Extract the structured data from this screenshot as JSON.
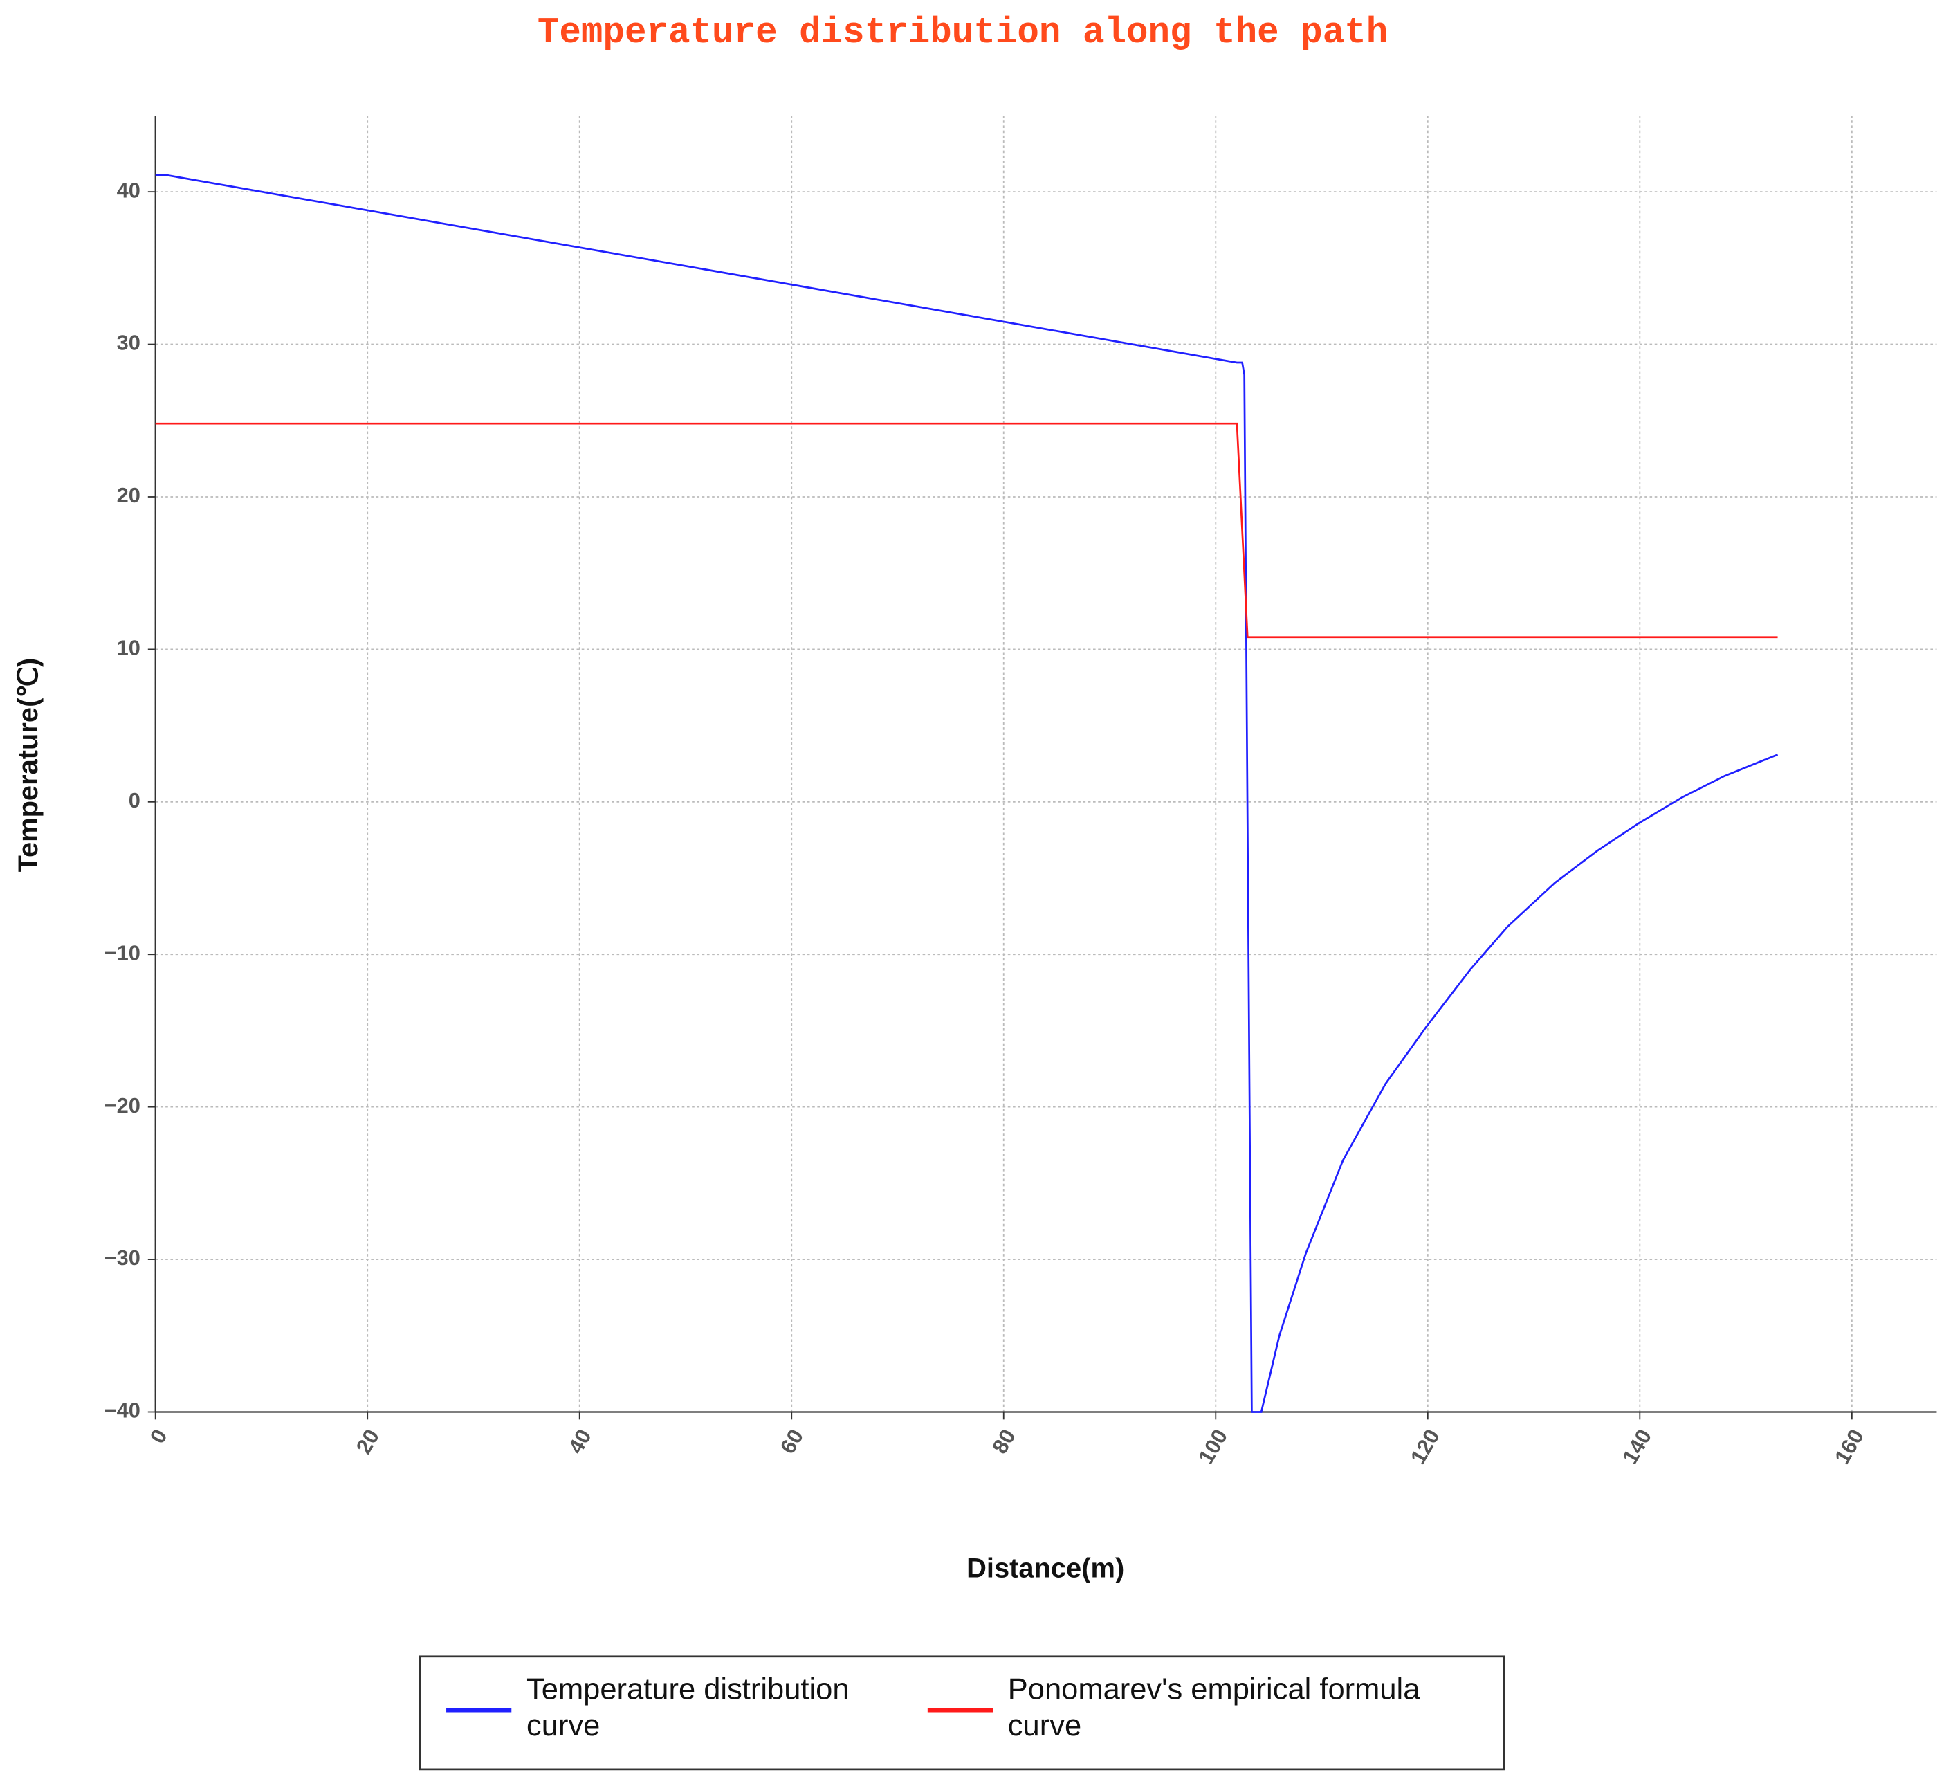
{
  "chart_data": {
    "type": "line",
    "title": "Temperature distribution along the path",
    "x_label": "Distance(m)",
    "y_label": "Temperature(℃)",
    "xlim": [
      0,
      168
    ],
    "ylim": [
      -40,
      45
    ],
    "xticks": [
      0,
      20,
      40,
      60,
      80,
      100,
      120,
      140,
      160
    ],
    "yticks": [
      {
        "value": -40,
        "label": "−40"
      },
      {
        "value": -30,
        "label": "−30"
      },
      {
        "value": -20,
        "label": "−20"
      },
      {
        "value": -10,
        "label": "−10"
      },
      0,
      10,
      20,
      30,
      40
    ],
    "grid": true,
    "legend": "bottom",
    "series": [
      {
        "name": "Temperature distribution curve",
        "color": "#2020ff",
        "x": [
          0,
          1,
          102,
          102.5,
          102.7,
          103.4,
          104.3,
          106,
          108.5,
          112,
          116,
          119.8,
          124,
          127.5,
          132,
          136,
          139.9,
          144,
          148,
          153
        ],
        "values": [
          41.1,
          41.1,
          28.8,
          28.8,
          28,
          -40,
          -40,
          -35,
          -29.6,
          -23.5,
          -18.5,
          -14.8,
          -11,
          -8.2,
          -5.3,
          -3.2,
          -1.4,
          0.3,
          1.7,
          3.1
        ]
      },
      {
        "name": "Ponomarev's empirical formula curve",
        "color": "#ff1a1a",
        "x": [
          0,
          102,
          103,
          153
        ],
        "values": [
          24.8,
          24.8,
          10.8,
          10.8
        ]
      }
    ]
  }
}
